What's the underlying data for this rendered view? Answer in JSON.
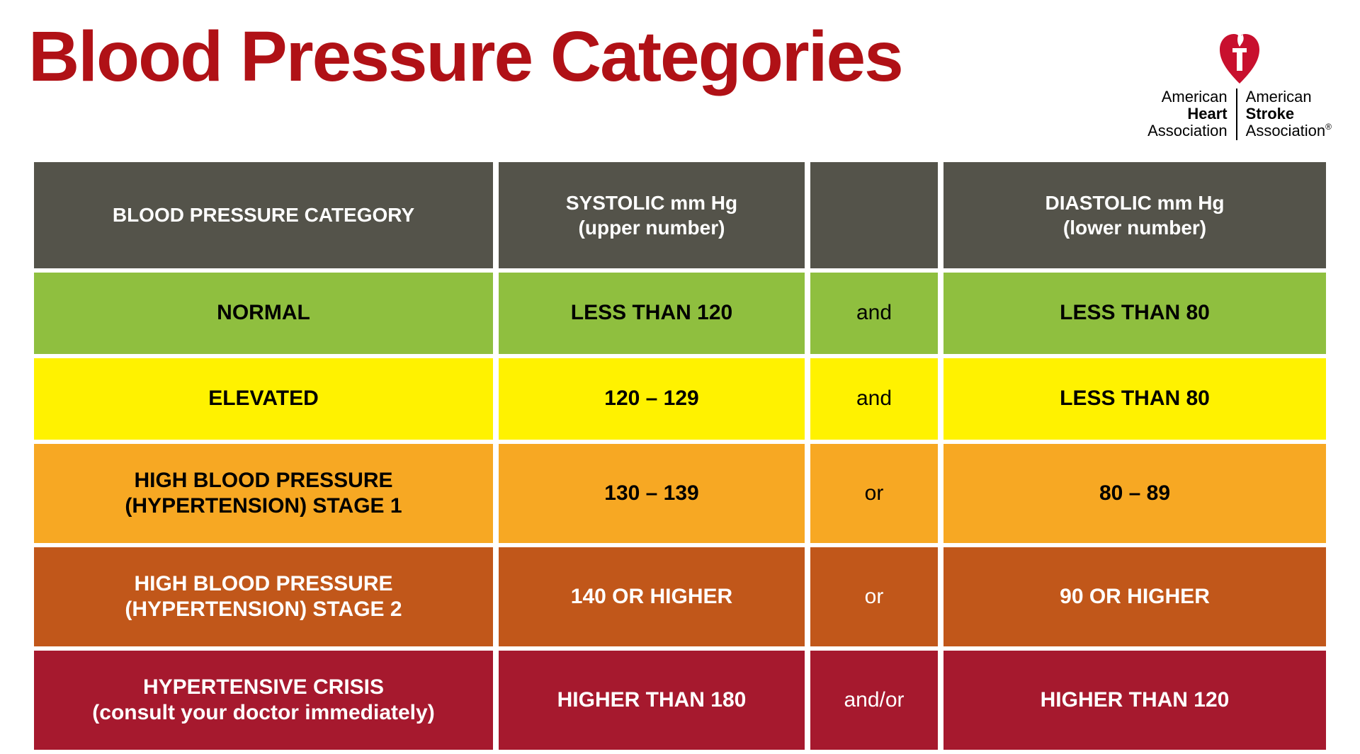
{
  "title": "Blood Pressure Categories",
  "title_color": "#b01116",
  "logo": {
    "left_line1": "American",
    "left_line2": "Heart",
    "left_line3": "Association",
    "right_line1": "American",
    "right_line2": "Stroke",
    "right_line3": "Association",
    "trademark": "®",
    "heart_color": "#c8102e",
    "torch_color": "#ffffff"
  },
  "header": {
    "bg": "#54534a",
    "col1": "BLOOD PRESSURE CATEGORY",
    "col2_line1": "SYSTOLIC mm Hg",
    "col2_line2": "(upper number)",
    "col3": "",
    "col4_line1": "DIASTOLIC mm Hg",
    "col4_line2": "(lower number)"
  },
  "rows": [
    {
      "bg": "#8fbf3f",
      "text_class": "black",
      "conj_text_class": "black",
      "tall": false,
      "cat_line1": "NORMAL",
      "cat_line2": "",
      "systolic": "LESS THAN 120",
      "conj": "and",
      "diastolic": "LESS THAN 80"
    },
    {
      "bg": "#fff200",
      "text_class": "black",
      "conj_text_class": "black",
      "tall": false,
      "cat_line1": "ELEVATED",
      "cat_line2": "",
      "systolic": "120 – 129",
      "conj": "and",
      "diastolic": "LESS THAN 80"
    },
    {
      "bg": "#f7a823",
      "text_class": "black",
      "conj_text_class": "black",
      "tall": true,
      "cat_line1": "HIGH BLOOD PRESSURE",
      "cat_line2": "(HYPERTENSION) STAGE 1",
      "systolic": "130 – 139",
      "conj": "or",
      "diastolic": "80 – 89"
    },
    {
      "bg": "#c1571a",
      "text_class": "white",
      "conj_text_class": "white",
      "tall": true,
      "cat_line1": "HIGH BLOOD PRESSURE",
      "cat_line2": "(HYPERTENSION) STAGE 2",
      "systolic": "140 OR HIGHER",
      "conj": "or",
      "diastolic": "90 OR HIGHER"
    },
    {
      "bg": "#a6192e",
      "text_class": "white",
      "conj_text_class": "white",
      "tall": true,
      "cat_line1": "HYPERTENSIVE CRISIS",
      "cat_line2": "(consult your doctor immediately)",
      "systolic": "HIGHER THAN 180",
      "conj": "and/or",
      "diastolic": "HIGHER THAN 120"
    }
  ]
}
